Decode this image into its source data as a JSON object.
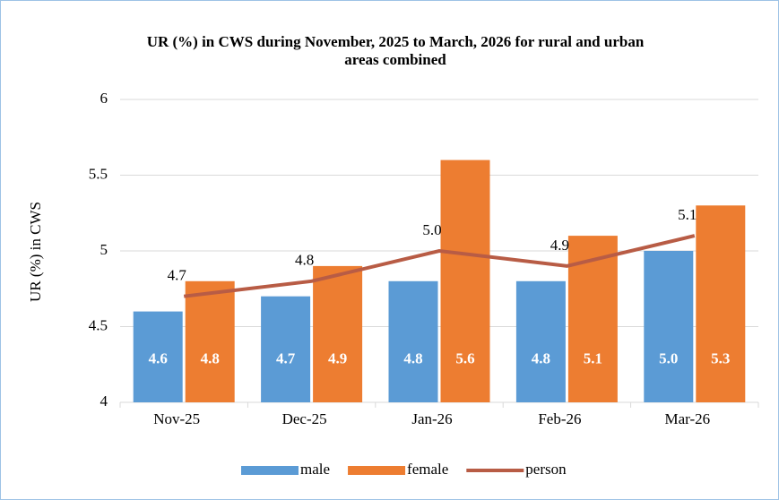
{
  "chart_data": {
    "type": "bar",
    "title": "UR (%) in CWS during November, 2025 to March, 2026 for rural and urban areas combined",
    "y_label": "UR (%) in CWS",
    "categories": [
      "Nov-25",
      "Dec-25",
      "Jan-26",
      "Feb-26",
      "Mar-26"
    ],
    "series": [
      {
        "name": "male",
        "type": "bar",
        "color": "#5b9bd5",
        "values": [
          4.6,
          4.7,
          4.8,
          4.8,
          5.0
        ],
        "value_labels": [
          "4.6",
          "4.7",
          "4.8",
          "4.8",
          "5.0"
        ]
      },
      {
        "name": "female",
        "type": "bar",
        "color": "#ed7d31",
        "values": [
          4.8,
          4.9,
          5.6,
          5.1,
          5.3
        ]
      },
      {
        "name": "person",
        "type": "line",
        "color": "#b85c45",
        "values": [
          4.7,
          4.8,
          5.0,
          4.9,
          5.1
        ],
        "value_labels": [
          "4.7",
          "4.8",
          "5.0",
          "4.9",
          "5.1"
        ]
      }
    ],
    "ylim": [
      4,
      6
    ],
    "yticks": [
      4,
      4.5,
      5,
      5.5,
      6
    ],
    "grid": true,
    "legend": "bottom"
  }
}
